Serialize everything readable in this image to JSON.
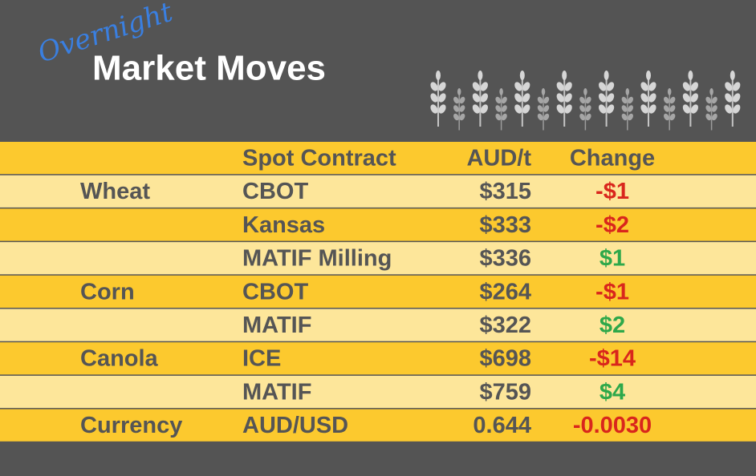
{
  "header": {
    "script_title": "Overnight",
    "title": "Market Moves"
  },
  "table": {
    "columns": [
      "Spot Contract",
      "AUD/t",
      "Change"
    ],
    "rows": [
      {
        "commodity": "Wheat",
        "contract": "CBOT",
        "price": "$315",
        "change": "-$1"
      },
      {
        "contract": "Kansas",
        "price": "$333",
        "change": "-$2"
      },
      {
        "contract": "MATIF Milling",
        "price": "$336",
        "change": "$1"
      },
      {
        "commodity": "Corn",
        "contract": "CBOT",
        "price": "$264",
        "change": "-$1"
      },
      {
        "contract": "MATIF",
        "price": "$322",
        "change": "$2"
      },
      {
        "commodity": "Canola",
        "contract": "ICE",
        "price": "$698",
        "change": "-$14"
      },
      {
        "contract": "MATIF",
        "price": "$759",
        "change": "$4"
      },
      {
        "commodity": "Currency",
        "contract": "AUD/USD",
        "price": "0.644",
        "change": "-0.0030"
      }
    ],
    "colors": {
      "negative": "#d9261c",
      "positive": "#2ea84a"
    }
  }
}
